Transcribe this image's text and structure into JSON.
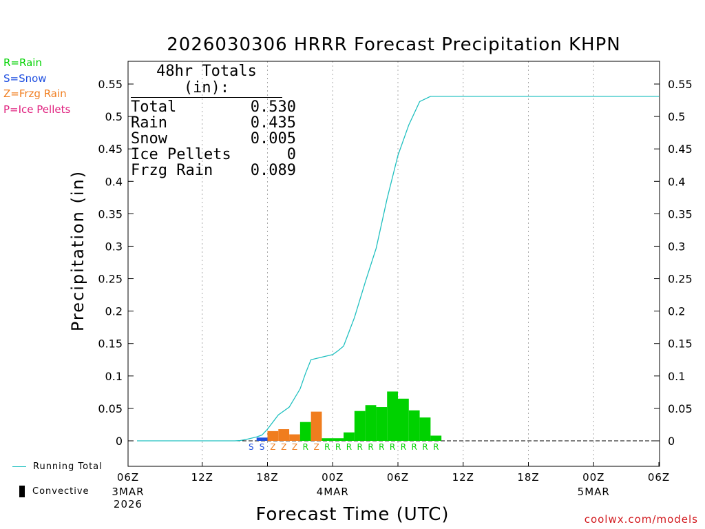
{
  "chart_data": {
    "type": "bar",
    "title": "2026030306 HRRR Forecast Precipitation KHPN",
    "xlabel": "Forecast Time (UTC)",
    "ylabel": "Precipitation (in)",
    "ylim": [
      -0.04,
      0.585
    ],
    "y_ticks": [
      "0",
      "0.05",
      "0.1",
      "0.15",
      "0.2",
      "0.25",
      "0.3",
      "0.35",
      "0.4",
      "0.45",
      "0.5",
      "0.55"
    ],
    "x_range_hours": [
      0,
      48
    ],
    "x_ticks": [
      {
        "hour": 0,
        "label": "06Z",
        "sub": [
          "3MAR",
          "2026"
        ]
      },
      {
        "hour": 6,
        "label": "12Z",
        "sub": []
      },
      {
        "hour": 12,
        "label": "18Z",
        "sub": []
      },
      {
        "hour": 18,
        "label": "00Z",
        "sub": [
          "4MAR"
        ]
      },
      {
        "hour": 24,
        "label": "06Z",
        "sub": []
      },
      {
        "hour": 30,
        "label": "12Z",
        "sub": []
      },
      {
        "hour": 36,
        "label": "18Z",
        "sub": []
      },
      {
        "hour": 42,
        "label": "00Z",
        "sub": [
          "5MAR"
        ]
      },
      {
        "hour": 48,
        "label": "06Z",
        "sub": []
      }
    ],
    "type_colors": {
      "S": "#1f4fe0",
      "Z": "#f07d1e",
      "R": "#00d200"
    },
    "bars": [
      {
        "hour": 11,
        "type": "S",
        "value": 0.005
      },
      {
        "hour": 12,
        "type": "Z",
        "value": 0.015
      },
      {
        "hour": 13,
        "type": "Z",
        "value": 0.018
      },
      {
        "hour": 14,
        "type": "Z",
        "value": 0.01
      },
      {
        "hour": 15,
        "type": "R",
        "value": 0.029
      },
      {
        "hour": 16,
        "type": "Z",
        "value": 0.045
      },
      {
        "hour": 17,
        "type": "R",
        "value": 0.004
      },
      {
        "hour": 18,
        "type": "R",
        "value": 0.004
      },
      {
        "hour": 19,
        "type": "R",
        "value": 0.013
      },
      {
        "hour": 20,
        "type": "R",
        "value": 0.046
      },
      {
        "hour": 21,
        "type": "R",
        "value": 0.055
      },
      {
        "hour": 22,
        "type": "R",
        "value": 0.052
      },
      {
        "hour": 23,
        "type": "R",
        "value": 0.076
      },
      {
        "hour": 24,
        "type": "R",
        "value": 0.065
      },
      {
        "hour": 25,
        "type": "R",
        "value": 0.047
      },
      {
        "hour": 26,
        "type": "R",
        "value": 0.036
      },
      {
        "hour": 27,
        "type": "R",
        "value": 0.008
      }
    ],
    "type_labels": [
      {
        "hour": 10,
        "type": "S"
      },
      {
        "hour": 11,
        "type": "S"
      },
      {
        "hour": 12,
        "type": "Z"
      },
      {
        "hour": 13,
        "type": "Z"
      },
      {
        "hour": 14,
        "type": "Z"
      },
      {
        "hour": 15,
        "type": "R"
      },
      {
        "hour": 16,
        "type": "Z"
      },
      {
        "hour": 17,
        "type": "R"
      },
      {
        "hour": 18,
        "type": "R"
      },
      {
        "hour": 19,
        "type": "R"
      },
      {
        "hour": 20,
        "type": "R"
      },
      {
        "hour": 21,
        "type": "R"
      },
      {
        "hour": 22,
        "type": "R"
      },
      {
        "hour": 23,
        "type": "R"
      },
      {
        "hour": 24,
        "type": "R"
      },
      {
        "hour": 25,
        "type": "R"
      },
      {
        "hour": 26,
        "type": "R"
      },
      {
        "hour": 27,
        "type": "R"
      }
    ],
    "running_total": {
      "name": "Running Total",
      "color": "#20c0c0",
      "x": [
        0,
        9,
        9.5,
        10,
        10.5,
        11,
        11.5,
        12,
        13,
        14,
        15,
        15.5,
        16,
        17,
        18,
        18.5,
        19,
        20,
        21,
        22,
        23,
        24,
        25,
        26,
        27,
        28,
        48
      ],
      "y": [
        0,
        0,
        0.0005,
        0.002,
        0.004,
        0.006,
        0.009,
        0.018,
        0.04,
        0.052,
        0.08,
        0.104,
        0.125,
        0.129,
        0.133,
        0.139,
        0.146,
        0.19,
        0.245,
        0.297,
        0.373,
        0.44,
        0.487,
        0.523,
        0.531,
        0.531,
        0.531
      ]
    }
  },
  "legend": {
    "rain": "R=Rain",
    "snow": "S=Snow",
    "frzg": "Z=Frzg Rain",
    "ice": "P=Ice Pellets",
    "rain_color": "#00d200",
    "snow_color": "#1f4fe0",
    "frzg_color": "#f07d1e",
    "ice_color": "#e0207e",
    "running_total": "Running Total",
    "convective": "Convective"
  },
  "totals": {
    "heading": "48hr Totals (in):",
    "rows": [
      {
        "label": "Total",
        "value": "0.530"
      },
      {
        "label": "Rain",
        "value": "0.435"
      },
      {
        "label": "Snow",
        "value": "0.005"
      },
      {
        "label": "Ice Pellets",
        "value": "0"
      },
      {
        "label": "Frzg Rain",
        "value": "0.089"
      }
    ]
  },
  "credit": "coolwx.com/models"
}
